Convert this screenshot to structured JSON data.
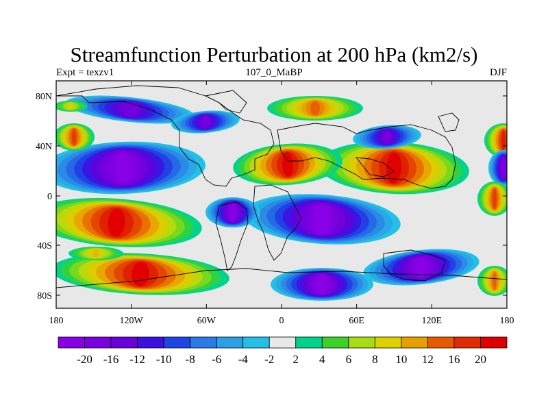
{
  "title": "Streamfunction Perturbation at 200 hPa (km2/s)",
  "left_label": "Expt = texzv1",
  "center_label": "107_0_MaBP",
  "right_label": "DJF",
  "x_ticks": [
    "180",
    "120W",
    "60W",
    "0",
    "60E",
    "120E",
    "180"
  ],
  "y_ticks": [
    "80N",
    "40N",
    "0",
    "40S",
    "80S"
  ],
  "colorbar": {
    "labels": [
      "-20",
      "-16",
      "-12",
      "-10",
      "-8",
      "-6",
      "-4",
      "-2",
      "2",
      "4",
      "6",
      "8",
      "10",
      "12",
      "16",
      "20"
    ],
    "colors": [
      "#8a00e6",
      "#7a00e0",
      "#6a00da",
      "#3c10e0",
      "#1e46e6",
      "#2a7ae8",
      "#2ba0e6",
      "#22c0e6",
      "#e8e8e8",
      "#00d48c",
      "#3cd22a",
      "#a8dc14",
      "#dcd200",
      "#e8a000",
      "#e85a00",
      "#e02a00",
      "#e00000"
    ]
  }
}
